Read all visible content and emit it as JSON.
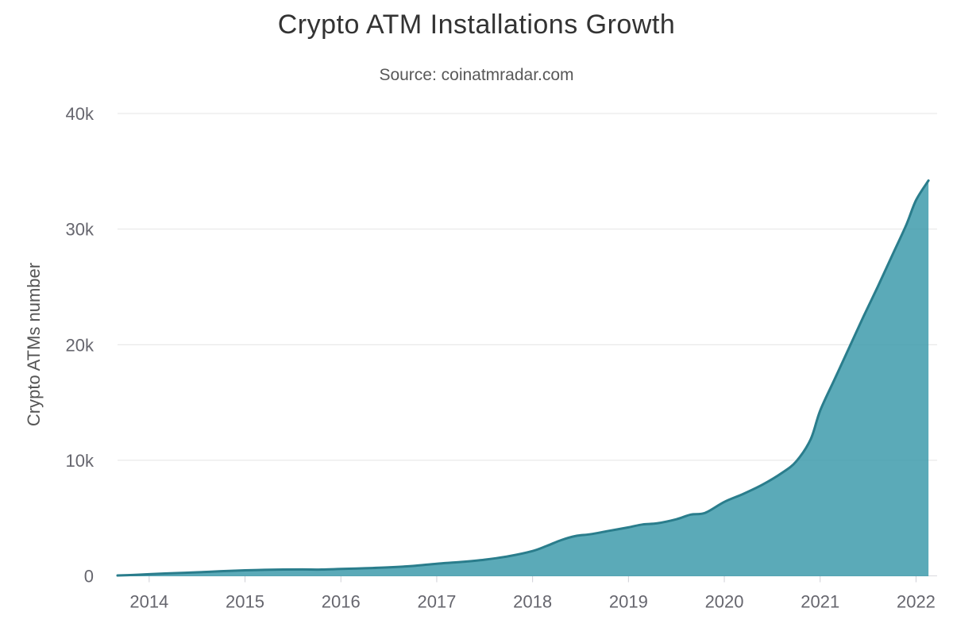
{
  "page": {
    "background": "#ffffff"
  },
  "chart_data": {
    "type": "area",
    "title": "Crypto ATM Installations Growth",
    "subtitle": "Source: coinatmradar.com",
    "xlabel": "",
    "ylabel": "Crypto ATMs number",
    "legend": false,
    "grid": true,
    "xlim": [
      2013.67,
      2022.22
    ],
    "ylim": [
      0,
      40000
    ],
    "x_tick_values": [
      2014,
      2015,
      2016,
      2017,
      2018,
      2019,
      2020,
      2021,
      2022
    ],
    "x_tick_labels": [
      "2014",
      "2015",
      "2016",
      "2017",
      "2018",
      "2019",
      "2020",
      "2021",
      "2022"
    ],
    "y_tick_values": [
      0,
      10000,
      20000,
      30000,
      40000
    ],
    "y_tick_labels": [
      "0",
      "10k",
      "20k",
      "30k",
      "40k"
    ],
    "series": [
      {
        "points": [
          [
            2013.67,
            30
          ],
          [
            2013.83,
            80
          ],
          [
            2014.0,
            150
          ],
          [
            2014.25,
            230
          ],
          [
            2014.5,
            310
          ],
          [
            2014.75,
            400
          ],
          [
            2015.0,
            480
          ],
          [
            2015.2,
            520
          ],
          [
            2015.4,
            545
          ],
          [
            2015.6,
            555
          ],
          [
            2015.8,
            545
          ],
          [
            2016.0,
            600
          ],
          [
            2016.25,
            660
          ],
          [
            2016.5,
            740
          ],
          [
            2016.75,
            860
          ],
          [
            2017.0,
            1050
          ],
          [
            2017.25,
            1200
          ],
          [
            2017.5,
            1400
          ],
          [
            2017.75,
            1700
          ],
          [
            2018.0,
            2150
          ],
          [
            2018.15,
            2600
          ],
          [
            2018.3,
            3100
          ],
          [
            2018.45,
            3450
          ],
          [
            2018.6,
            3600
          ],
          [
            2018.8,
            3900
          ],
          [
            2019.0,
            4200
          ],
          [
            2019.15,
            4450
          ],
          [
            2019.3,
            4550
          ],
          [
            2019.5,
            4900
          ],
          [
            2019.65,
            5300
          ],
          [
            2019.8,
            5450
          ],
          [
            2020.0,
            6400
          ],
          [
            2020.2,
            7100
          ],
          [
            2020.4,
            7900
          ],
          [
            2020.6,
            8900
          ],
          [
            2020.75,
            9900
          ],
          [
            2020.9,
            11800
          ],
          [
            2021.0,
            14300
          ],
          [
            2021.15,
            17000
          ],
          [
            2021.3,
            19700
          ],
          [
            2021.45,
            22400
          ],
          [
            2021.6,
            25000
          ],
          [
            2021.75,
            27700
          ],
          [
            2021.9,
            30400
          ],
          [
            2022.0,
            32500
          ],
          [
            2022.13,
            34200
          ]
        ]
      }
    ],
    "colors": {
      "area_fill": "#3E9BAC",
      "area_fill_opacity": 0.85,
      "line": "#2A7D8C",
      "grid": "#e4e4e4",
      "axis_line": "#d9d9df",
      "tick": "#cfcfd6",
      "title": "#333333",
      "subtitle": "#585858",
      "axis_label": "#66666e"
    }
  }
}
